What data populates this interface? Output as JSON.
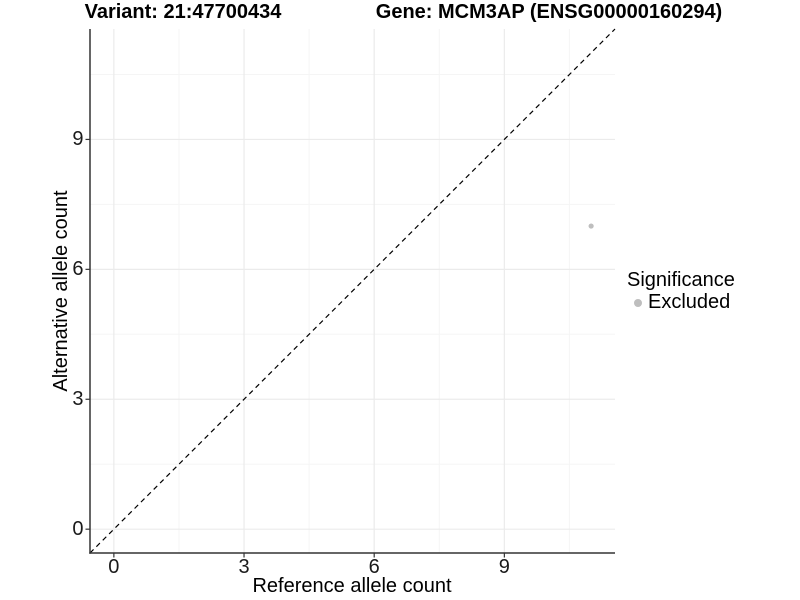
{
  "chart_data": {
    "type": "scatter",
    "title_left": "Variant: 21:47700434",
    "title_right": "Gene: MCM3AP (ENSG00000160294)",
    "xlabel": "Reference allele count",
    "ylabel": "Alternative allele count",
    "xlim": [
      -0.55,
      11.55
    ],
    "ylim": [
      -0.55,
      11.55
    ],
    "x_ticks": [
      0,
      3,
      6,
      9
    ],
    "y_ticks": [
      0,
      3,
      6,
      9
    ],
    "x_minor_ticks": [
      1.5,
      4.5,
      7.5,
      10.5
    ],
    "y_minor_ticks": [
      1.5,
      4.5,
      7.5,
      10.5
    ],
    "grid": "major and minor gridlines, light gray on white panel",
    "points": [
      {
        "x": 11,
        "y": 7,
        "series": "Excluded"
      }
    ],
    "reference_line": {
      "type": "identity y=x",
      "style": "dashed",
      "span": "full panel corner to corner"
    },
    "legend": {
      "title": "Significance",
      "position": "right",
      "entries": [
        {
          "label": "Excluded",
          "color": "#bebebe"
        }
      ]
    }
  },
  "colors": {
    "background": "#ffffff",
    "point": "#bebebe",
    "grid_major": "#ebebeb",
    "grid_minor": "#f5f5f5",
    "axis_line": "#333333",
    "tick_mark": "#333333",
    "dashed_line": "#000000",
    "text": "#000000"
  }
}
